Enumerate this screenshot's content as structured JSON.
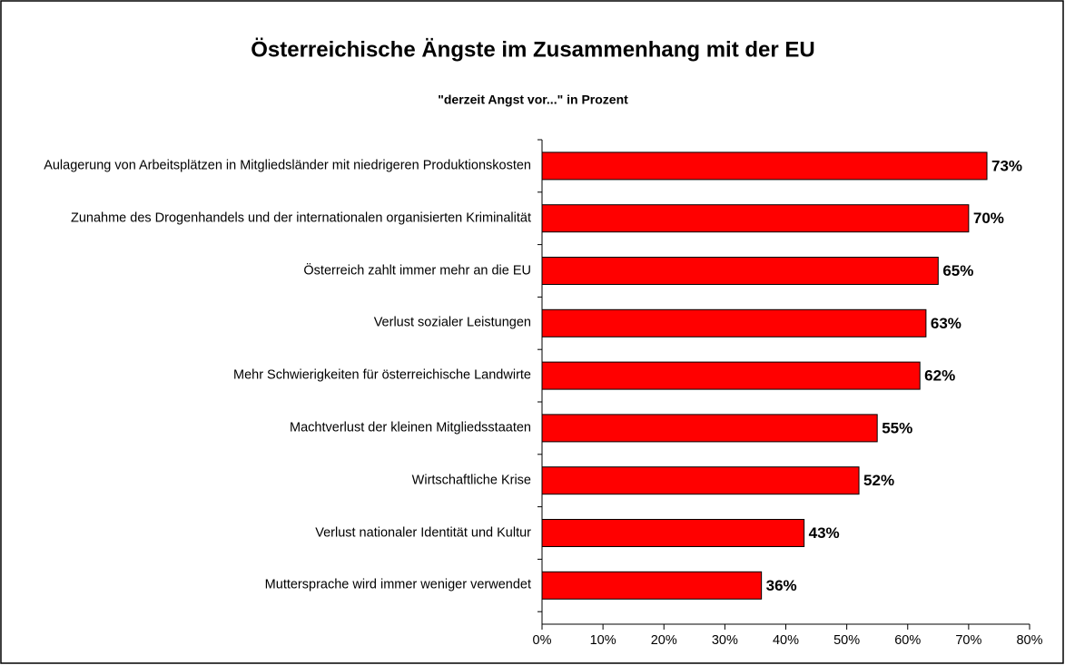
{
  "chart_data": {
    "type": "bar",
    "orientation": "horizontal",
    "title": "Österreichische Ängste im Zusammenhang mit der EU",
    "subtitle": "\"derzeit Angst vor...\" in Prozent",
    "categories": [
      "Aulagerung von Arbeitsplätzen in Mitgliedsländer mit niedrigeren Produktionskosten",
      "Zunahme des Drogenhandels und der internationalen organisierten Kriminalität",
      "Österreich zahlt immer mehr an die EU",
      "Verlust sozialer Leistungen",
      "Mehr Schwierigkeiten für österreichische Landwirte",
      "Machtverlust der kleinen Mitgliedsstaaten",
      "Wirtschaftliche Krise",
      "Verlust nationaler Identität und Kultur",
      "Muttersprache wird immer weniger verwendet"
    ],
    "values": [
      73,
      70,
      65,
      63,
      62,
      55,
      52,
      43,
      36
    ],
    "value_labels": [
      "73%",
      "70%",
      "65%",
      "63%",
      "62%",
      "55%",
      "52%",
      "43%",
      "36%"
    ],
    "color": "#ff0000",
    "xlim": [
      0,
      80
    ],
    "xticks": [
      {
        "value": 0,
        "label": "0%"
      },
      {
        "value": 10,
        "label": "10%"
      },
      {
        "value": 20,
        "label": "20%"
      },
      {
        "value": 30,
        "label": "30%"
      },
      {
        "value": 40,
        "label": "40%"
      },
      {
        "value": 50,
        "label": "50%"
      },
      {
        "value": 60,
        "label": "60%"
      },
      {
        "value": 70,
        "label": "70%"
      },
      {
        "value": 80,
        "label": "80%"
      }
    ],
    "grid": false
  }
}
